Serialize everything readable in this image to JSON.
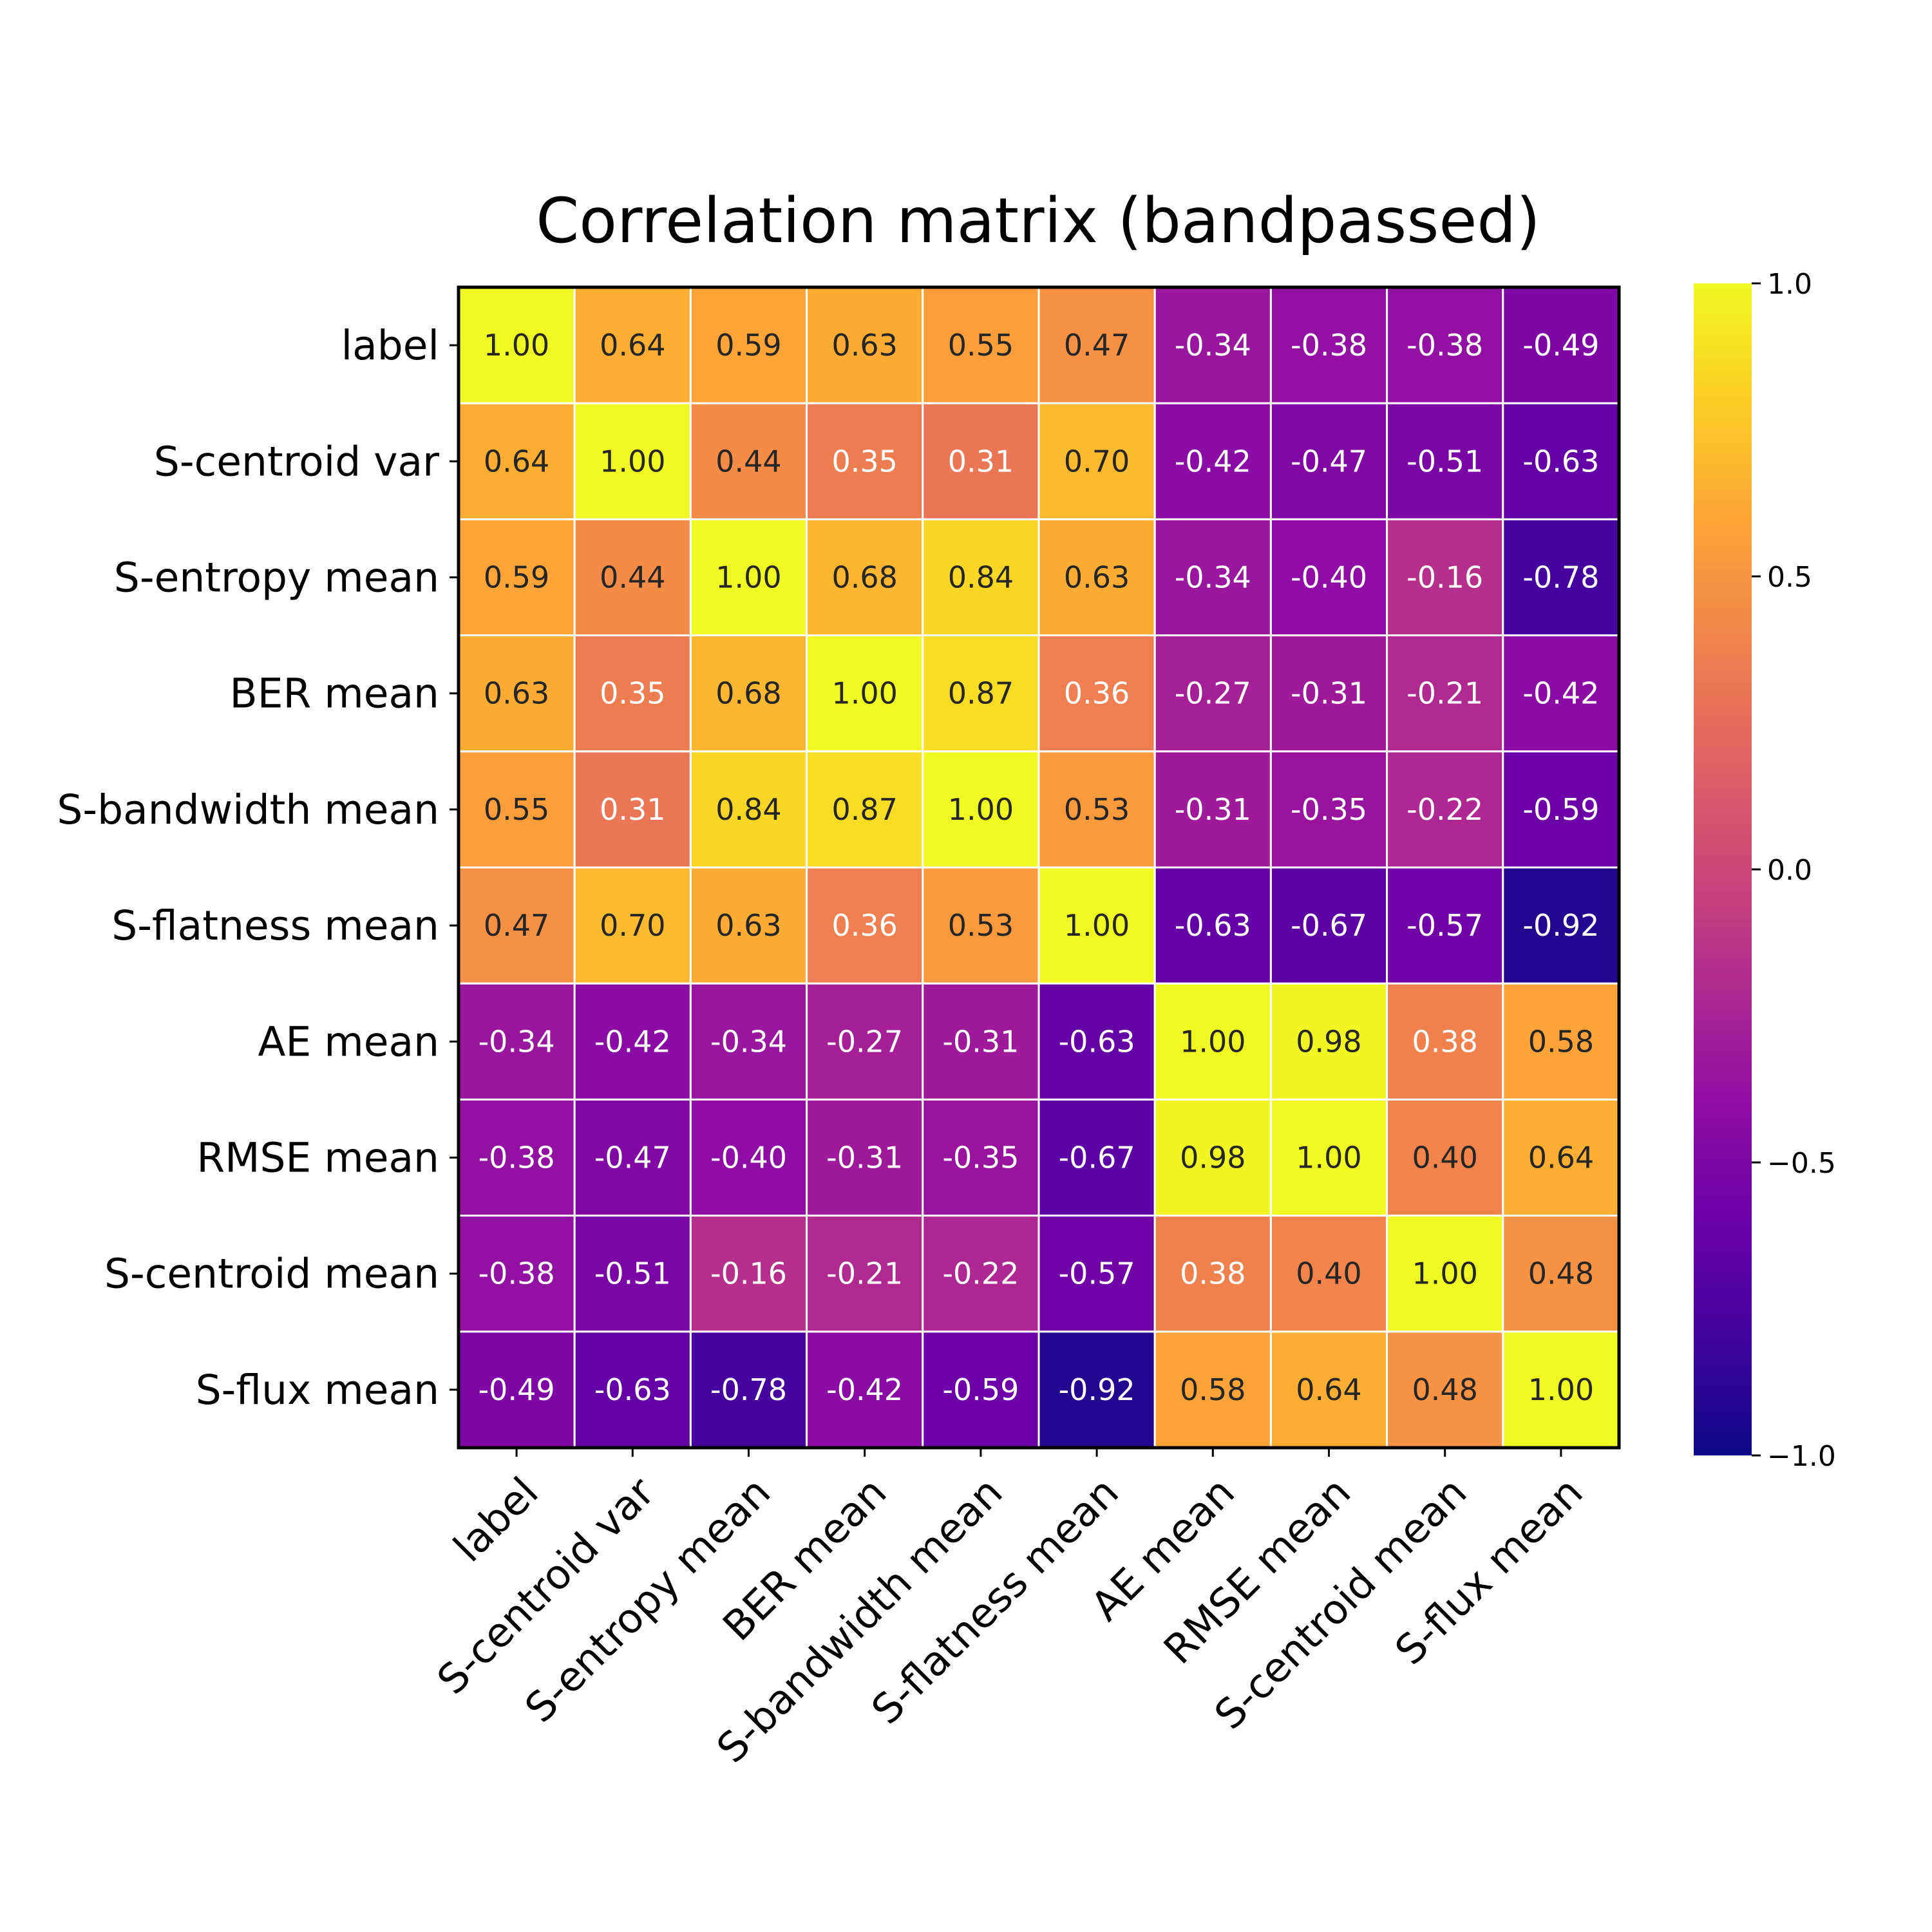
{
  "chart_data": {
    "type": "heatmap",
    "title": "Correlation matrix (bandpassed)",
    "colormap": "plasma",
    "value_range": [
      -1.0,
      1.0
    ],
    "cell_label_format": "2 decimals",
    "row_labels": [
      "label",
      "S-centroid var",
      "S-entropy mean",
      "BER mean",
      "S-bandwidth mean",
      "S-flatness mean",
      "AE mean",
      "RMSE mean",
      "S-centroid mean",
      "S-flux mean"
    ],
    "col_labels": [
      "label",
      "S-centroid var",
      "S-entropy mean",
      "BER mean",
      "S-bandwidth mean",
      "S-flatness mean",
      "AE mean",
      "RMSE mean",
      "S-centroid mean",
      "S-flux mean"
    ],
    "values": [
      [
        1.0,
        0.64,
        0.59,
        0.63,
        0.55,
        0.47,
        -0.34,
        -0.38,
        -0.38,
        -0.49
      ],
      [
        0.64,
        1.0,
        0.44,
        0.35,
        0.31,
        0.7,
        -0.42,
        -0.47,
        -0.51,
        -0.63
      ],
      [
        0.59,
        0.44,
        1.0,
        0.68,
        0.84,
        0.63,
        -0.34,
        -0.4,
        -0.16,
        -0.78
      ],
      [
        0.63,
        0.35,
        0.68,
        1.0,
        0.87,
        0.36,
        -0.27,
        -0.31,
        -0.21,
        -0.42
      ],
      [
        0.55,
        0.31,
        0.84,
        0.87,
        1.0,
        0.53,
        -0.31,
        -0.35,
        -0.22,
        -0.59
      ],
      [
        0.47,
        0.7,
        0.63,
        0.36,
        0.53,
        1.0,
        -0.63,
        -0.67,
        -0.57,
        -0.92
      ],
      [
        -0.34,
        -0.42,
        -0.34,
        -0.27,
        -0.31,
        -0.63,
        1.0,
        0.98,
        0.38,
        0.58
      ],
      [
        -0.38,
        -0.47,
        -0.4,
        -0.31,
        -0.35,
        -0.67,
        0.98,
        1.0,
        0.4,
        0.64
      ],
      [
        -0.38,
        -0.51,
        -0.16,
        -0.21,
        -0.22,
        -0.57,
        0.38,
        0.4,
        1.0,
        0.48
      ],
      [
        -0.49,
        -0.63,
        -0.78,
        -0.42,
        -0.59,
        -0.92,
        0.58,
        0.64,
        0.48,
        1.0
      ]
    ],
    "colorbar": {
      "ticks": [
        1.0,
        0.5,
        0.0,
        -0.5,
        -1.0
      ],
      "tick_labels": [
        "1.0",
        "0.5",
        "0.0",
        "−0.5",
        "−1.0"
      ]
    }
  }
}
